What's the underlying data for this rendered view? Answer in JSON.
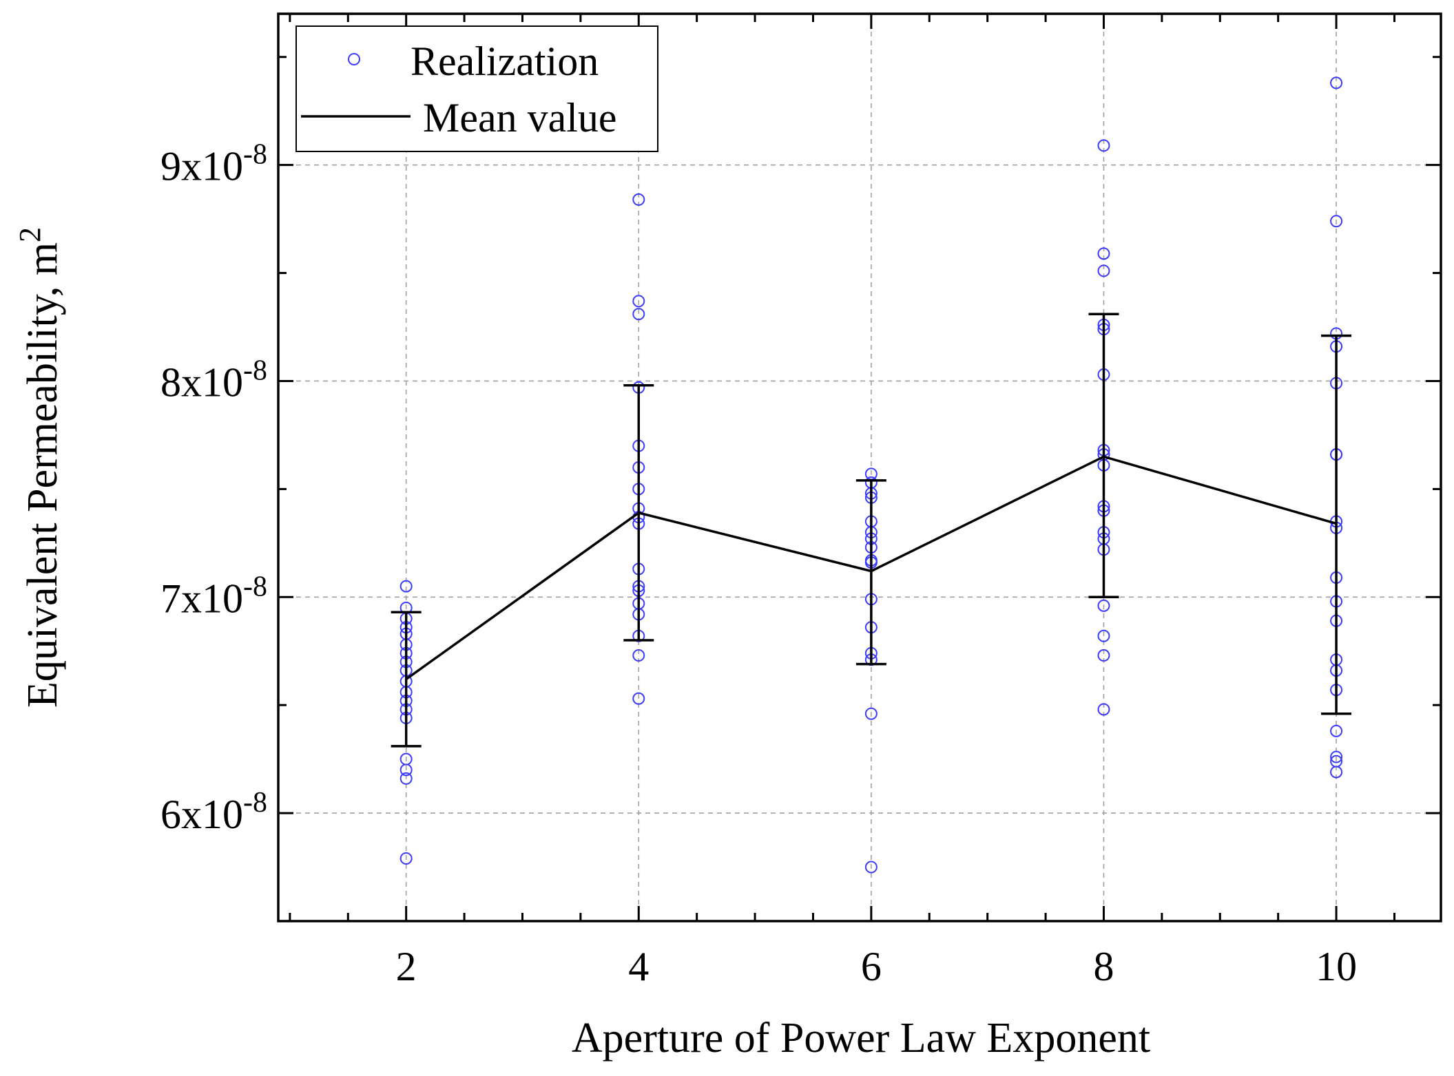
{
  "chart_data": {
    "type": "scatter",
    "title": "",
    "xlabel": "Aperture of Power Law Exponent",
    "ylabel": "Equivalent Permeability, m",
    "ylabel_superscript": "2",
    "xlim": [
      0.9,
      10.9
    ],
    "ylim": [
      5.5e-08,
      9.7e-08
    ],
    "x_ticks": [
      2,
      4,
      6,
      8,
      10
    ],
    "x_tick_labels": [
      "2",
      "4",
      "6",
      "8",
      "10"
    ],
    "y_ticks": [
      6e-08,
      7e-08,
      8e-08,
      9e-08
    ],
    "y_tick_labels": [
      {
        "base": "6x10",
        "exp": "-8"
      },
      {
        "base": "7x10",
        "exp": "-8"
      },
      {
        "base": "8x10",
        "exp": "-8"
      },
      {
        "base": "9x10",
        "exp": "-8"
      }
    ],
    "grid": true,
    "legend": {
      "position": "top-left",
      "entries": [
        {
          "label": "Realization",
          "style": "marker"
        },
        {
          "label": "Mean value",
          "style": "line"
        }
      ]
    },
    "colors": {
      "realization": "#3b3bff",
      "mean": "#000000",
      "grid": "#a0a0a0"
    },
    "series": [
      {
        "name": "Realization",
        "type": "scatter",
        "points": [
          {
            "x": 2,
            "values": [
              7.05e-08,
              6.95e-08,
              6.9e-08,
              6.86e-08,
              6.83e-08,
              6.78e-08,
              6.74e-08,
              6.7e-08,
              6.66e-08,
              6.61e-08,
              6.56e-08,
              6.52e-08,
              6.48e-08,
              6.44e-08,
              6.25e-08,
              6.2e-08,
              6.16e-08,
              5.79e-08
            ]
          },
          {
            "x": 4,
            "values": [
              8.84e-08,
              8.37e-08,
              8.31e-08,
              7.97e-08,
              7.7e-08,
              7.6e-08,
              7.5e-08,
              7.41e-08,
              7.37e-08,
              7.34e-08,
              7.13e-08,
              7.05e-08,
              7.03e-08,
              6.97e-08,
              6.92e-08,
              6.82e-08,
              6.73e-08,
              6.53e-08
            ]
          },
          {
            "x": 6,
            "values": [
              7.57e-08,
              7.53e-08,
              7.48e-08,
              7.46e-08,
              7.35e-08,
              7.3e-08,
              7.27e-08,
              7.23e-08,
              7.17e-08,
              7.16e-08,
              6.99e-08,
              6.86e-08,
              6.74e-08,
              6.71e-08,
              6.46e-08,
              5.75e-08
            ]
          },
          {
            "x": 8,
            "values": [
              9.09e-08,
              8.59e-08,
              8.51e-08,
              8.26e-08,
              8.24e-08,
              8.03e-08,
              7.68e-08,
              7.66e-08,
              7.61e-08,
              7.42e-08,
              7.4e-08,
              7.3e-08,
              7.27e-08,
              7.22e-08,
              6.96e-08,
              6.82e-08,
              6.73e-08,
              6.48e-08
            ]
          },
          {
            "x": 10,
            "values": [
              9.38e-08,
              8.74e-08,
              8.22e-08,
              8.16e-08,
              7.99e-08,
              7.66e-08,
              7.66e-08,
              7.35e-08,
              7.32e-08,
              7.09e-08,
              6.98e-08,
              6.89e-08,
              6.71e-08,
              6.66e-08,
              6.57e-08,
              6.38e-08,
              6.26e-08,
              6.24e-08,
              6.19e-08
            ]
          }
        ]
      },
      {
        "name": "Mean value",
        "type": "line",
        "x": [
          2,
          4,
          6,
          8,
          10
        ],
        "values": [
          6.62e-08,
          7.39e-08,
          7.12e-08,
          7.65e-08,
          7.34e-08
        ],
        "error_low": [
          6.31e-08,
          6.8e-08,
          6.69e-08,
          7e-08,
          6.46e-08
        ],
        "error_high": [
          6.93e-08,
          7.98e-08,
          7.54e-08,
          8.31e-08,
          8.21e-08
        ]
      }
    ]
  }
}
